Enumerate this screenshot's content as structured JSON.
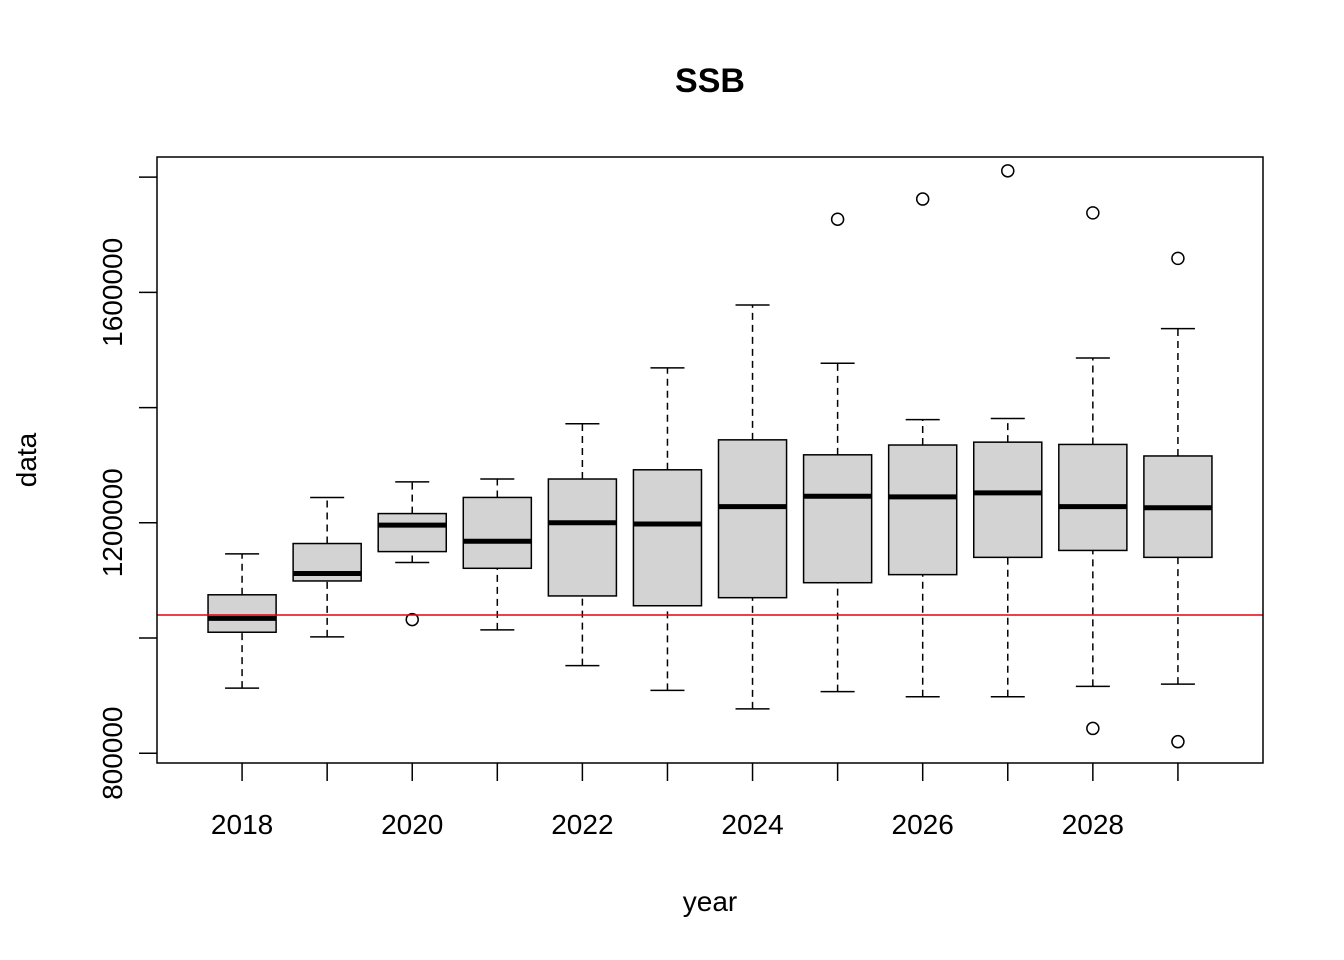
{
  "chart_data": {
    "type": "boxplot",
    "title": "SSB",
    "xlabel": "year",
    "ylabel": "data",
    "xlim": [
      2017.0,
      2030.0
    ],
    "ylim": [
      783000,
      1835000
    ],
    "x_ticks": [
      2018,
      2019,
      2020,
      2021,
      2022,
      2023,
      2024,
      2025,
      2026,
      2027,
      2028,
      2029
    ],
    "x_tick_labels": [
      "2018",
      "",
      "2020",
      "",
      "2022",
      "",
      "2024",
      "",
      "2026",
      "",
      "2028",
      ""
    ],
    "y_ticks": [
      800000,
      1000000,
      1200000,
      1400000,
      1600000,
      1800000
    ],
    "y_tick_labels": [
      "800000",
      "",
      "1200000",
      "",
      "1600000",
      ""
    ],
    "reference_line": {
      "y": 1040000,
      "color": "#e8000b"
    },
    "colors": {
      "box_fill": "#d3d3d3",
      "stroke": "#000000"
    },
    "series": [
      {
        "x": 2018,
        "whisker_low": 913000,
        "q1": 1010000,
        "median": 1034000,
        "q3": 1075000,
        "whisker_high": 1146000,
        "outliers": []
      },
      {
        "x": 2019,
        "whisker_low": 1002000,
        "q1": 1099000,
        "median": 1112000,
        "q3": 1164000,
        "whisker_high": 1244000,
        "outliers": []
      },
      {
        "x": 2020,
        "whisker_low": 1131000,
        "q1": 1150000,
        "median": 1196000,
        "q3": 1216000,
        "whisker_high": 1271000,
        "outliers": [
          1032000
        ]
      },
      {
        "x": 2021,
        "whisker_low": 1014000,
        "q1": 1121000,
        "median": 1168000,
        "q3": 1244000,
        "whisker_high": 1276000,
        "outliers": []
      },
      {
        "x": 2022,
        "whisker_low": 952000,
        "q1": 1073000,
        "median": 1200000,
        "q3": 1276000,
        "whisker_high": 1372000,
        "outliers": []
      },
      {
        "x": 2023,
        "whisker_low": 909000,
        "q1": 1056000,
        "median": 1198000,
        "q3": 1292000,
        "whisker_high": 1469000,
        "outliers": []
      },
      {
        "x": 2024,
        "whisker_low": 877000,
        "q1": 1070000,
        "median": 1228000,
        "q3": 1344000,
        "whisker_high": 1578000,
        "outliers": []
      },
      {
        "x": 2025,
        "whisker_low": 907000,
        "q1": 1096000,
        "median": 1246000,
        "q3": 1318000,
        "whisker_high": 1477000,
        "outliers": [
          1727000
        ]
      },
      {
        "x": 2026,
        "whisker_low": 898000,
        "q1": 1110000,
        "median": 1245000,
        "q3": 1335000,
        "whisker_high": 1379000,
        "outliers": [
          1762000
        ]
      },
      {
        "x": 2027,
        "whisker_low": 898000,
        "q1": 1140000,
        "median": 1252000,
        "q3": 1340000,
        "whisker_high": 1381000,
        "outliers": [
          1811000
        ]
      },
      {
        "x": 2028,
        "whisker_low": 916000,
        "q1": 1152000,
        "median": 1228000,
        "q3": 1336000,
        "whisker_high": 1486000,
        "outliers": [
          1738000,
          843000
        ]
      },
      {
        "x": 2029,
        "whisker_low": 920000,
        "q1": 1140000,
        "median": 1226000,
        "q3": 1316000,
        "whisker_high": 1537000,
        "outliers": [
          1659000,
          820000
        ]
      }
    ]
  }
}
